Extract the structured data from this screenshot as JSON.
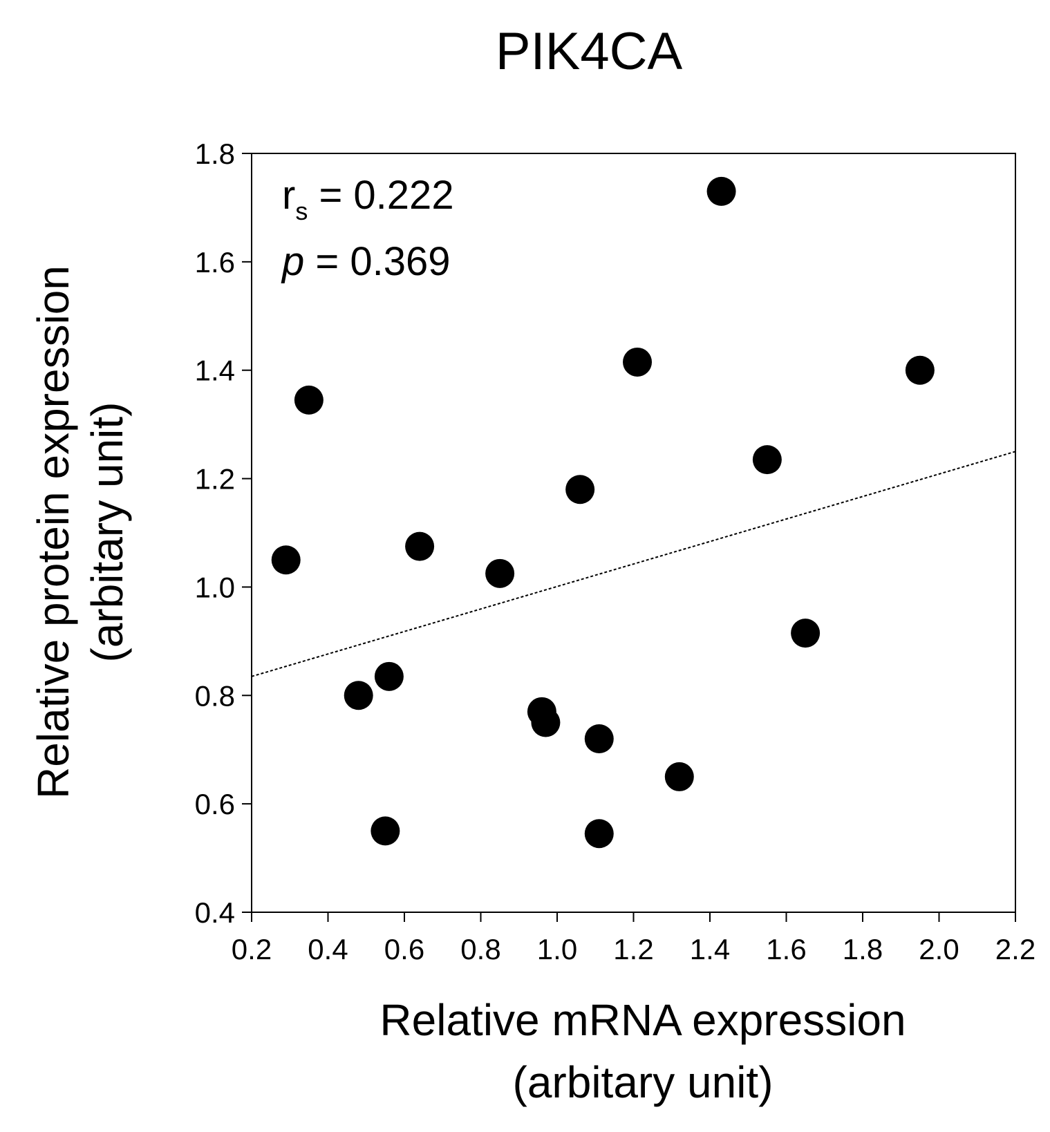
{
  "chart_data": {
    "type": "scatter",
    "title": "PIK4CA",
    "xlabel_line1": "Relative mRNA expression",
    "xlabel_line2": "(arbitary unit)",
    "ylabel_line1": "Relative protein expression",
    "ylabel_line2": "(arbitary unit)",
    "xlim": [
      0.2,
      2.2
    ],
    "ylim": [
      0.4,
      1.8
    ],
    "xticks": [
      0.2,
      0.4,
      0.6,
      0.8,
      1.0,
      1.2,
      1.4,
      1.6,
      1.8,
      2.0,
      2.2
    ],
    "xtick_labels": [
      "0.2",
      "0.4",
      "0.6",
      "0.8",
      "1.0",
      "1.2",
      "1.4",
      "1.6",
      "1.8",
      "2.0",
      "2.2"
    ],
    "yticks": [
      0.4,
      0.6,
      0.8,
      1.0,
      1.2,
      1.4,
      1.6,
      1.8
    ],
    "ytick_labels": [
      "0.4",
      "0.6",
      "0.8",
      "1.0",
      "1.2",
      "1.4",
      "1.6",
      "1.8"
    ],
    "points": [
      {
        "x": 0.29,
        "y": 1.05
      },
      {
        "x": 0.35,
        "y": 1.345
      },
      {
        "x": 0.48,
        "y": 0.8
      },
      {
        "x": 0.55,
        "y": 0.55
      },
      {
        "x": 0.56,
        "y": 0.835
      },
      {
        "x": 0.64,
        "y": 1.075
      },
      {
        "x": 0.85,
        "y": 1.025
      },
      {
        "x": 0.96,
        "y": 0.77
      },
      {
        "x": 0.97,
        "y": 0.75
      },
      {
        "x": 1.06,
        "y": 1.18
      },
      {
        "x": 1.11,
        "y": 0.72
      },
      {
        "x": 1.11,
        "y": 0.545
      },
      {
        "x": 1.21,
        "y": 1.415
      },
      {
        "x": 1.32,
        "y": 0.65
      },
      {
        "x": 1.43,
        "y": 1.73
      },
      {
        "x": 1.55,
        "y": 1.235
      },
      {
        "x": 1.65,
        "y": 0.915
      },
      {
        "x": 1.95,
        "y": 1.4
      }
    ],
    "trendline": {
      "x": [
        0.2,
        2.2
      ],
      "y": [
        0.835,
        1.25
      ]
    },
    "annotation": {
      "rs_symbol": "r",
      "rs_subscript": "s",
      "rs_value": " = 0.222",
      "p_symbol": "p",
      "p_value": " = 0.369"
    },
    "grid": false
  }
}
